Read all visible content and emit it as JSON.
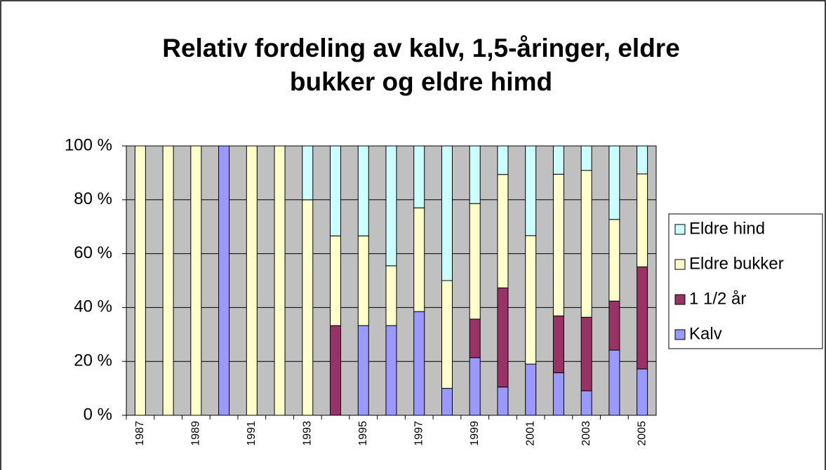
{
  "chart_data": {
    "type": "bar",
    "stacked": true,
    "title": "Relativ fordeling av kalv, 1,5-åringer, eldre bukker og eldre himd",
    "categories": [
      "1987",
      null,
      "1989",
      null,
      "1991",
      null,
      "1993",
      null,
      "1995",
      null,
      "1997",
      null,
      "1999",
      null,
      "2001",
      null,
      "2003",
      null,
      "2005"
    ],
    "series": [
      {
        "name": "Kalv",
        "color": "#9999ff",
        "values": [
          0,
          0,
          0,
          100,
          0,
          0,
          0,
          0,
          33.3,
          33.3,
          38.5,
          10,
          21.4,
          10.5,
          19,
          15.8,
          9.1,
          24.2,
          17.2
        ]
      },
      {
        "name": "1 1/2 år",
        "color": "#993366",
        "values": [
          0,
          0,
          0,
          0,
          0,
          0,
          0,
          33.3,
          0,
          0,
          0,
          0,
          14.3,
          36.8,
          0,
          21.1,
          27.3,
          18.2,
          37.9
        ]
      },
      {
        "name": "Eldre bukker",
        "color": "#ffffcc",
        "values": [
          100,
          100,
          100,
          0,
          100,
          100,
          80,
          33.3,
          33.3,
          22.2,
          38.5,
          40,
          42.9,
          42.1,
          47.7,
          52.6,
          54.5,
          30.3,
          34.5
        ]
      },
      {
        "name": "Eldre hind",
        "color": "#ccffff",
        "values": [
          0,
          0,
          0,
          0,
          0,
          0,
          20,
          33.4,
          33.4,
          44.5,
          23,
          50,
          21.4,
          10.6,
          33.3,
          10.5,
          9.1,
          27.3,
          10.4
        ]
      }
    ],
    "ylim": [
      0,
      100
    ],
    "yticks": [
      {
        "value": 0,
        "label": "0 %"
      },
      {
        "value": 20,
        "label": "20 %"
      },
      {
        "value": 40,
        "label": "40 %"
      },
      {
        "value": 60,
        "label": "60 %"
      },
      {
        "value": 80,
        "label": "80 %"
      },
      {
        "value": 100,
        "label": "100 %"
      }
    ],
    "grid": true,
    "plot_background": "#c0c0c0",
    "legend": "right"
  }
}
